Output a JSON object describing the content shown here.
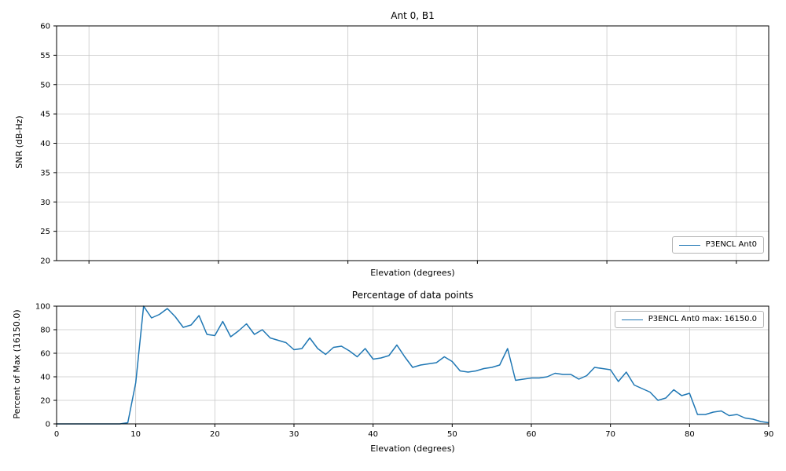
{
  "figure": {
    "background": "#ffffff",
    "line_color": "#1f77b4",
    "grid_color": "#c8c8c8",
    "spine_color": "#000000"
  },
  "chart_data": [
    {
      "type": "line",
      "title": "Ant 0, B1",
      "xlabel": "Elevation (degrees)",
      "ylabel": "SNR (dB-Hz)",
      "xlim": [
        -0.05,
        1.05
      ],
      "ylim": [
        20,
        60
      ],
      "xticks": [
        0.0,
        0.2,
        0.4,
        0.6,
        0.8,
        1.0
      ],
      "yticks": [
        20,
        25,
        30,
        35,
        40,
        45,
        50,
        55,
        60
      ],
      "xtick_labels_visible": false,
      "grid": true,
      "legend": {
        "position": "bottom-right",
        "entries": [
          "P3ENCL Ant0"
        ]
      },
      "series": [
        {
          "name": "P3ENCL Ant0",
          "x": [],
          "y": []
        }
      ]
    },
    {
      "type": "line",
      "title": "Percentage of data points",
      "xlabel": "Elevation (degrees)",
      "ylabel": "Percent of Max (16150.0)",
      "xlim": [
        0,
        90
      ],
      "ylim": [
        0,
        100
      ],
      "xticks": [
        0,
        10,
        20,
        30,
        40,
        50,
        60,
        70,
        80,
        90
      ],
      "yticks": [
        0,
        20,
        40,
        60,
        80,
        100
      ],
      "xtick_labels_visible": true,
      "grid": true,
      "max_value": 16150.0,
      "legend": {
        "position": "top-right",
        "entries": [
          "P3ENCL Ant0 max: 16150.0"
        ]
      },
      "series": [
        {
          "name": "P3ENCL Ant0",
          "x": [
            0,
            1,
            2,
            3,
            4,
            5,
            6,
            7,
            8,
            9,
            10,
            11,
            12,
            13,
            14,
            15,
            16,
            17,
            18,
            19,
            20,
            21,
            22,
            23,
            24,
            25,
            26,
            27,
            28,
            29,
            30,
            31,
            32,
            33,
            34,
            35,
            36,
            37,
            38,
            39,
            40,
            41,
            42,
            43,
            44,
            45,
            46,
            47,
            48,
            49,
            50,
            51,
            52,
            53,
            54,
            55,
            56,
            57,
            58,
            59,
            60,
            61,
            62,
            63,
            64,
            65,
            66,
            67,
            68,
            69,
            70,
            71,
            72,
            73,
            74,
            75,
            76,
            77,
            78,
            79,
            80,
            81,
            82,
            83,
            84,
            85,
            86,
            87,
            88,
            89,
            90
          ],
          "y": [
            0,
            0,
            0,
            0,
            0,
            0,
            0,
            0,
            0,
            1,
            35,
            100,
            90,
            93,
            98,
            91,
            82,
            84,
            92,
            76,
            75,
            87,
            74,
            79,
            85,
            76,
            80,
            73,
            71,
            69,
            63,
            64,
            73,
            64,
            59,
            65,
            66,
            62,
            57,
            64,
            55,
            56,
            58,
            67,
            57,
            48,
            50,
            51,
            52,
            57,
            53,
            45,
            44,
            45,
            47,
            48,
            50,
            64,
            37,
            38,
            39,
            39,
            40,
            43,
            42,
            42,
            38,
            41,
            48,
            47,
            46,
            36,
            44,
            33,
            30,
            27,
            20,
            22,
            29,
            24,
            26,
            8,
            8,
            10,
            11,
            7,
            8,
            5,
            4,
            2,
            1
          ]
        }
      ]
    }
  ]
}
